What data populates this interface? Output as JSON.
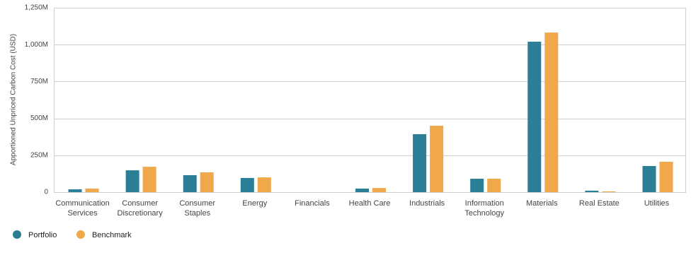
{
  "chart_data": {
    "type": "bar",
    "y_label": "Apportioned Unpriced Carbon Cost (USD)",
    "categories": [
      [
        "Communication",
        "Services"
      ],
      [
        "Consumer",
        "Discretionary"
      ],
      [
        "Consumer",
        "Staples"
      ],
      [
        "Energy"
      ],
      [
        "Financials"
      ],
      [
        "Health Care"
      ],
      [
        "Industrials"
      ],
      [
        "Information",
        "Technology"
      ],
      [
        "Materials"
      ],
      [
        "Real Estate"
      ],
      [
        "Utilities"
      ]
    ],
    "series": [
      {
        "name": "Portfolio",
        "color": "#2a7f96",
        "values": [
          19,
          148,
          115,
          96,
          0,
          24,
          393,
          91,
          1020,
          10,
          177
        ]
      },
      {
        "name": "Benchmark",
        "color": "#f0a84b",
        "values": [
          24,
          172,
          134,
          100,
          0,
          28,
          450,
          91,
          1082,
          5,
          206
        ]
      }
    ],
    "ylim": [
      0,
      1250
    ],
    "yticks": [
      0,
      {
        "value": 250,
        "label": "250M"
      },
      {
        "value": 500,
        "label": "500M"
      },
      {
        "value": 750,
        "label": "750M"
      },
      {
        "value": 1000,
        "label": "1,000M"
      },
      {
        "value": 1250,
        "label": "1,250M"
      }
    ],
    "grid": true,
    "legend": "bottom-left"
  }
}
